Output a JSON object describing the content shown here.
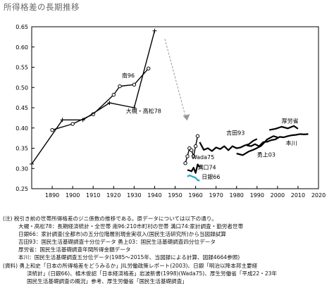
{
  "page": {
    "title": "所得格差の長期推移"
  },
  "chart_data": {
    "type": "line",
    "xlim": [
      1880,
      2020
    ],
    "ylim": [
      0.25,
      0.65
    ],
    "xticks": [
      1890,
      1900,
      1910,
      1920,
      1930,
      1940,
      1950,
      1960,
      1970,
      1980,
      1990,
      2000,
      2010,
      2020
    ],
    "yticks": [
      "0.25",
      "0.30",
      "0.35",
      "0.40",
      "0.45",
      "0.50",
      "0.55",
      "0.60",
      "0.65"
    ],
    "grid": false,
    "series": [
      {
        "name": "南96",
        "marker": "circle",
        "color": "#000000",
        "x": [
          1890,
          1900,
          1910,
          1920,
          1923,
          1930,
          1937
        ],
        "y": [
          0.395,
          0.41,
          0.434,
          0.482,
          0.503,
          0.507,
          0.547
        ]
      },
      {
        "name": "大槻・高松78",
        "marker": "plus",
        "color": "#000000",
        "x": [
          1880,
          1895,
          1905,
          1918,
          1930,
          1940
        ],
        "y": [
          0.311,
          0.42,
          0.42,
          0.462,
          0.45,
          0.64
        ]
      },
      {
        "name": "Wada75",
        "marker": "circle",
        "color": "#000000",
        "x": [
          1955,
          1956,
          1957,
          1958,
          1959,
          1960,
          1961
        ],
        "y": [
          0.313,
          0.33,
          0.35,
          0.345,
          0.33,
          0.355,
          0.38
        ]
      },
      {
        "name": "溝口74",
        "marker": "none",
        "color": "#000000",
        "x": [
          1956,
          1957,
          1958,
          1959,
          1960,
          1961,
          1962
        ],
        "y": [
          0.296,
          0.295,
          0.293,
          0.302,
          0.289,
          0.31,
          0.303
        ]
      },
      {
        "name": "日銀66",
        "marker": "none",
        "color": "#29a9c9",
        "x": [
          1956,
          1957,
          1958,
          1959,
          1960,
          1961,
          1962
        ],
        "y": [
          0.28,
          0.283,
          0.281,
          0.279,
          0.277,
          0.271,
          0.27
        ]
      },
      {
        "name": "吉田93",
        "marker": "none",
        "color": "#000000",
        "x": [
          1962,
          1964,
          1966,
          1968,
          1970,
          1972,
          1974,
          1976,
          1978,
          1980,
          1982,
          1984,
          1986,
          1988,
          1990
        ],
        "y": [
          0.365,
          0.346,
          0.35,
          0.343,
          0.352,
          0.348,
          0.355,
          0.345,
          0.355,
          0.35,
          0.352,
          0.357,
          0.36,
          0.368,
          0.373
        ]
      },
      {
        "name": "勇上03",
        "marker": "none",
        "color": "#000000",
        "x": [
          1980,
          1983,
          1986,
          1989,
          1992,
          1995,
          1998,
          2000
        ],
        "y": [
          0.337,
          0.333,
          0.342,
          0.348,
          0.356,
          0.372,
          0.38,
          0.377
        ]
      },
      {
        "name": "本川",
        "marker": "none",
        "color": "#000000",
        "x": [
          1985,
          1987,
          1989,
          1991,
          1993,
          1995,
          1997,
          1999,
          2001,
          2003,
          2005,
          2007,
          2009,
          2011,
          2013,
          2015
        ],
        "y": [
          0.357,
          0.355,
          0.36,
          0.355,
          0.365,
          0.366,
          0.37,
          0.372,
          0.378,
          0.377,
          0.38,
          0.382,
          0.383,
          0.385,
          0.384,
          0.385
        ]
      },
      {
        "name": "厚労省",
        "marker": "none",
        "color": "#000000",
        "x": [
          1996,
          1999,
          2002,
          2005,
          2008,
          2010
        ],
        "y": [
          0.395,
          0.398,
          0.403,
          0.399,
          0.405,
          0.398
        ]
      }
    ],
    "annotations": [
      {
        "text": "南96",
        "x": 1924,
        "y": 0.525
      },
      {
        "text": "大槻・高松78",
        "x": 1926,
        "y": 0.437
      },
      {
        "text": "Wada75",
        "x": 1958,
        "y": 0.323
      },
      {
        "text": "溝口74",
        "x": 1961,
        "y": 0.298
      },
      {
        "text": "日銀66",
        "x": 1963,
        "y": 0.274
      },
      {
        "text": "吉田93",
        "x": 1975,
        "y": 0.383
      },
      {
        "text": "勇上03",
        "x": 1990,
        "y": 0.329
      },
      {
        "text": "本川",
        "x": 2004,
        "y": 0.358
      },
      {
        "text": "厚労省",
        "x": 2002,
        "y": 0.413
      }
    ]
  },
  "notes": {
    "line1": "(注) 税引き前の世帯所得格差のジニ係数の推移である。原データについては以下の通り。",
    "line2": "大槻・高松78：長期経済統計・全世帯 南96:210市町村の世帯 溝口74:家計調査・勤労者世帯",
    "line3": "日銀66：家計調査(全都市)の五分位階層別現金実収入(国民生活研究所)から当図録試算",
    "line4": "吉田93：国民生活基礎調査十分位データ 勇上03：国民生活基礎調査四分位データ",
    "line5": "厚労省：国民生活基礎調査年間所得金額データ",
    "line6": "本川：国民生活基礎調査五分位データ(1985～2015年、当図録による計算、図録4664参照)",
    "line7": "(資料) 勇上和史「日本の所得格差をどうみるか」JIL労働政策レポート(2003)、日銀「明治以降本邦主要経",
    "line8": "済統計」(日銀66)、橘木俊詔「日本経済格差」岩波新書(1998)(Wada75)、厚生労働省「平成22・23年",
    "line9": "国民生活基礎調査の概況」参考、厚生労働省「国民生活基礎調査」"
  }
}
